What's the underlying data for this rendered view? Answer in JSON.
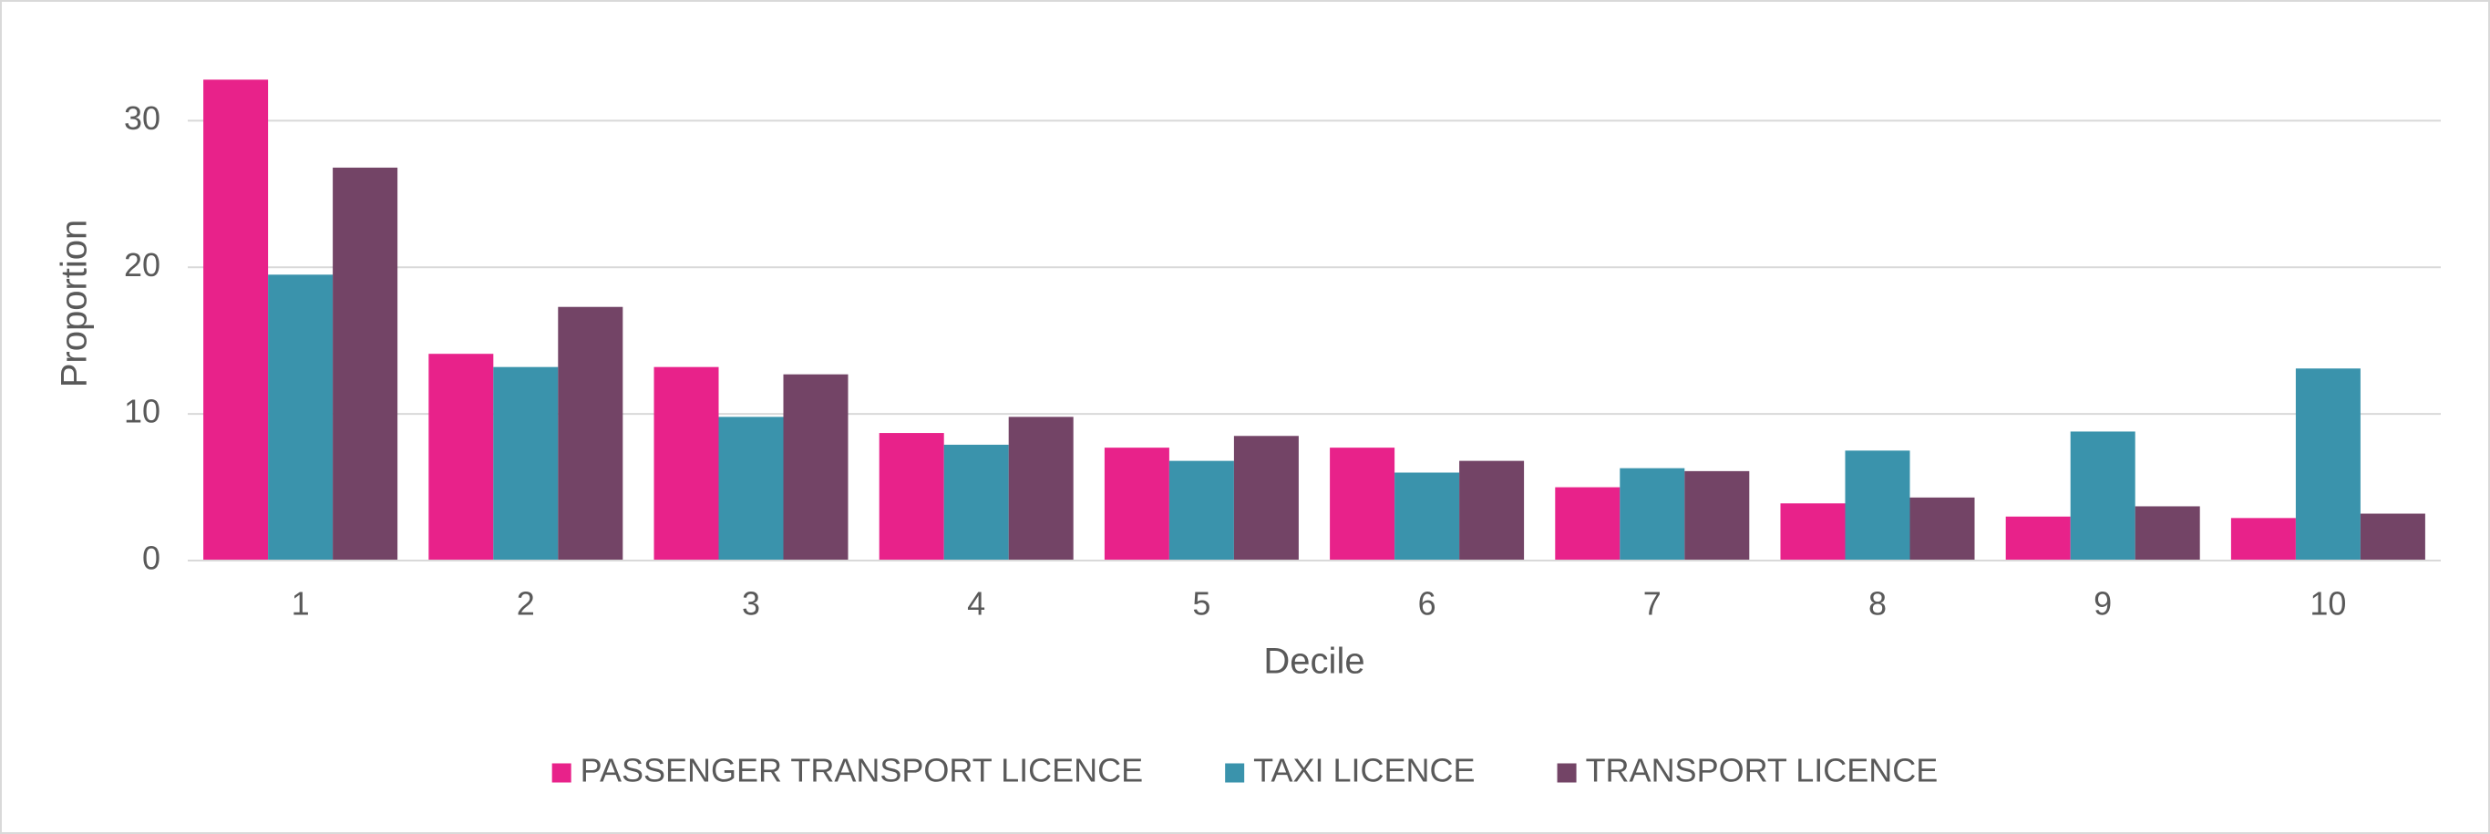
{
  "chart_data": {
    "type": "bar",
    "x_label": "Decile",
    "y_label": "Proportion",
    "categories": [
      "1",
      "2",
      "3",
      "4",
      "5",
      "6",
      "7",
      "8",
      "9",
      "10"
    ],
    "series": [
      {
        "name": "PASSENGER TRANSPORT LICENCE",
        "color": "#e8228a",
        "values": [
          32.8,
          14.1,
          13.2,
          8.7,
          7.7,
          7.7,
          5.0,
          3.9,
          3.0,
          2.9
        ]
      },
      {
        "name": "TAXI LICENCE",
        "color": "#3a93ac",
        "values": [
          19.5,
          13.2,
          9.8,
          7.9,
          6.8,
          6.0,
          6.3,
          7.5,
          8.8,
          13.1
        ]
      },
      {
        "name": "TRANSPORT LICENCE",
        "color": "#734466",
        "values": [
          26.8,
          17.3,
          12.7,
          9.8,
          8.5,
          6.8,
          6.1,
          4.3,
          3.7,
          3.2
        ]
      }
    ],
    "ylim": [
      0,
      35
    ],
    "yticks": [
      0,
      10,
      20,
      30
    ],
    "grid": true,
    "legend": "bottom"
  }
}
